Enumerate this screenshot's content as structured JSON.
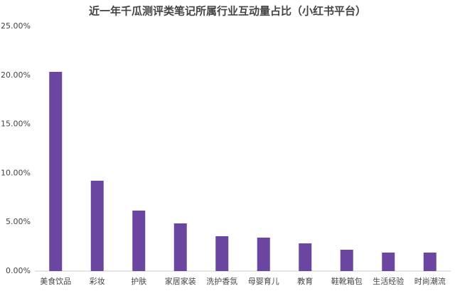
{
  "chart_data": {
    "type": "bar",
    "title": "近一年千瓜测评类笔记所属行业互动量占比（小红书平台）",
    "categories": [
      "美食饮品",
      "彩妆",
      "护肤",
      "家居家装",
      "洗护香氛",
      "母婴育儿",
      "教育",
      "鞋靴箱包",
      "生活经验",
      "时尚潮流"
    ],
    "values": [
      20.35,
      9.23,
      6.18,
      4.87,
      3.56,
      3.42,
      2.83,
      2.18,
      1.89,
      1.89
    ],
    "color": "#6b46a0",
    "ylim": [
      0,
      25
    ],
    "yticks": [
      {
        "value": 0,
        "label": "0.00%"
      },
      {
        "value": 5,
        "label": "5.00%"
      },
      {
        "value": 10,
        "label": "10.00%"
      },
      {
        "value": 15,
        "label": "15.00%"
      },
      {
        "value": 20,
        "label": "20.00%"
      },
      {
        "value": 25,
        "label": "25.00%"
      }
    ],
    "grid": false
  }
}
